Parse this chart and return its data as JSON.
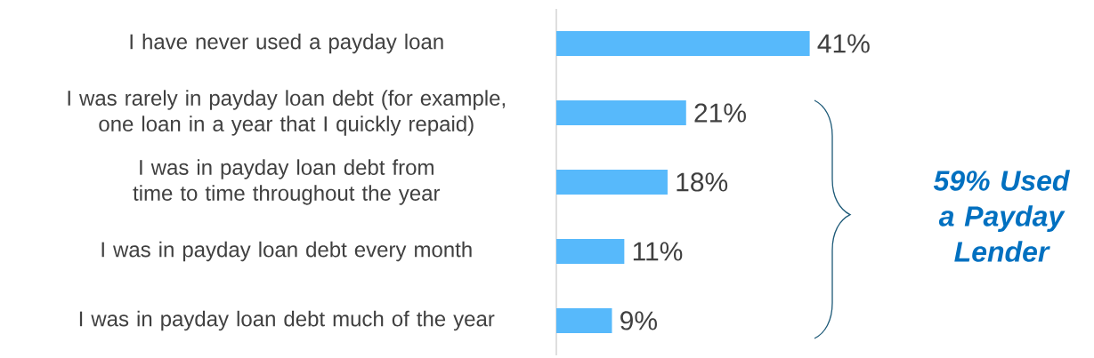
{
  "chart_data": {
    "type": "bar",
    "orientation": "horizontal",
    "categories": [
      "I have never used a payday loan",
      "I was rarely in payday loan debt (for example, one loan in a year that I quickly repaid)",
      "I was in payday loan debt from time to time throughout the year",
      "I was in payday loan debt every month",
      "I was in payday loan debt much of the year"
    ],
    "values": [
      41,
      21,
      18,
      11,
      9
    ],
    "value_labels": [
      "41%",
      "21%",
      "18%",
      "11%",
      "9%"
    ],
    "color": "#57b9fb",
    "annotations": [
      "59% Used a Payday Lender"
    ]
  }
}
